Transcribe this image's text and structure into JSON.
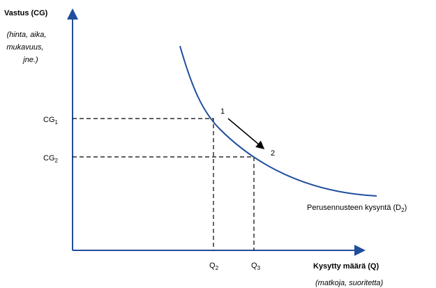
{
  "y_axis": {
    "title": "Vastus (CG)",
    "subtitle_lines": [
      "(hinta, aika,",
      "mukavuus,",
      "jne.)"
    ]
  },
  "x_axis": {
    "title": "Kysytty määrä (Q)",
    "subtitle": "(matkoja, suoritetta)"
  },
  "levels": [
    {
      "label": "CG",
      "sub": "1"
    },
    {
      "label": "CG",
      "sub": "2"
    }
  ],
  "quantities": [
    {
      "label": "Q",
      "sub": "2"
    },
    {
      "label": "Q",
      "sub": "3"
    }
  ],
  "points": [
    "1",
    "2"
  ],
  "curve_label": {
    "text": "Perusennusteen kysyntä (D",
    "sub": "2",
    "suffix": ")"
  }
}
